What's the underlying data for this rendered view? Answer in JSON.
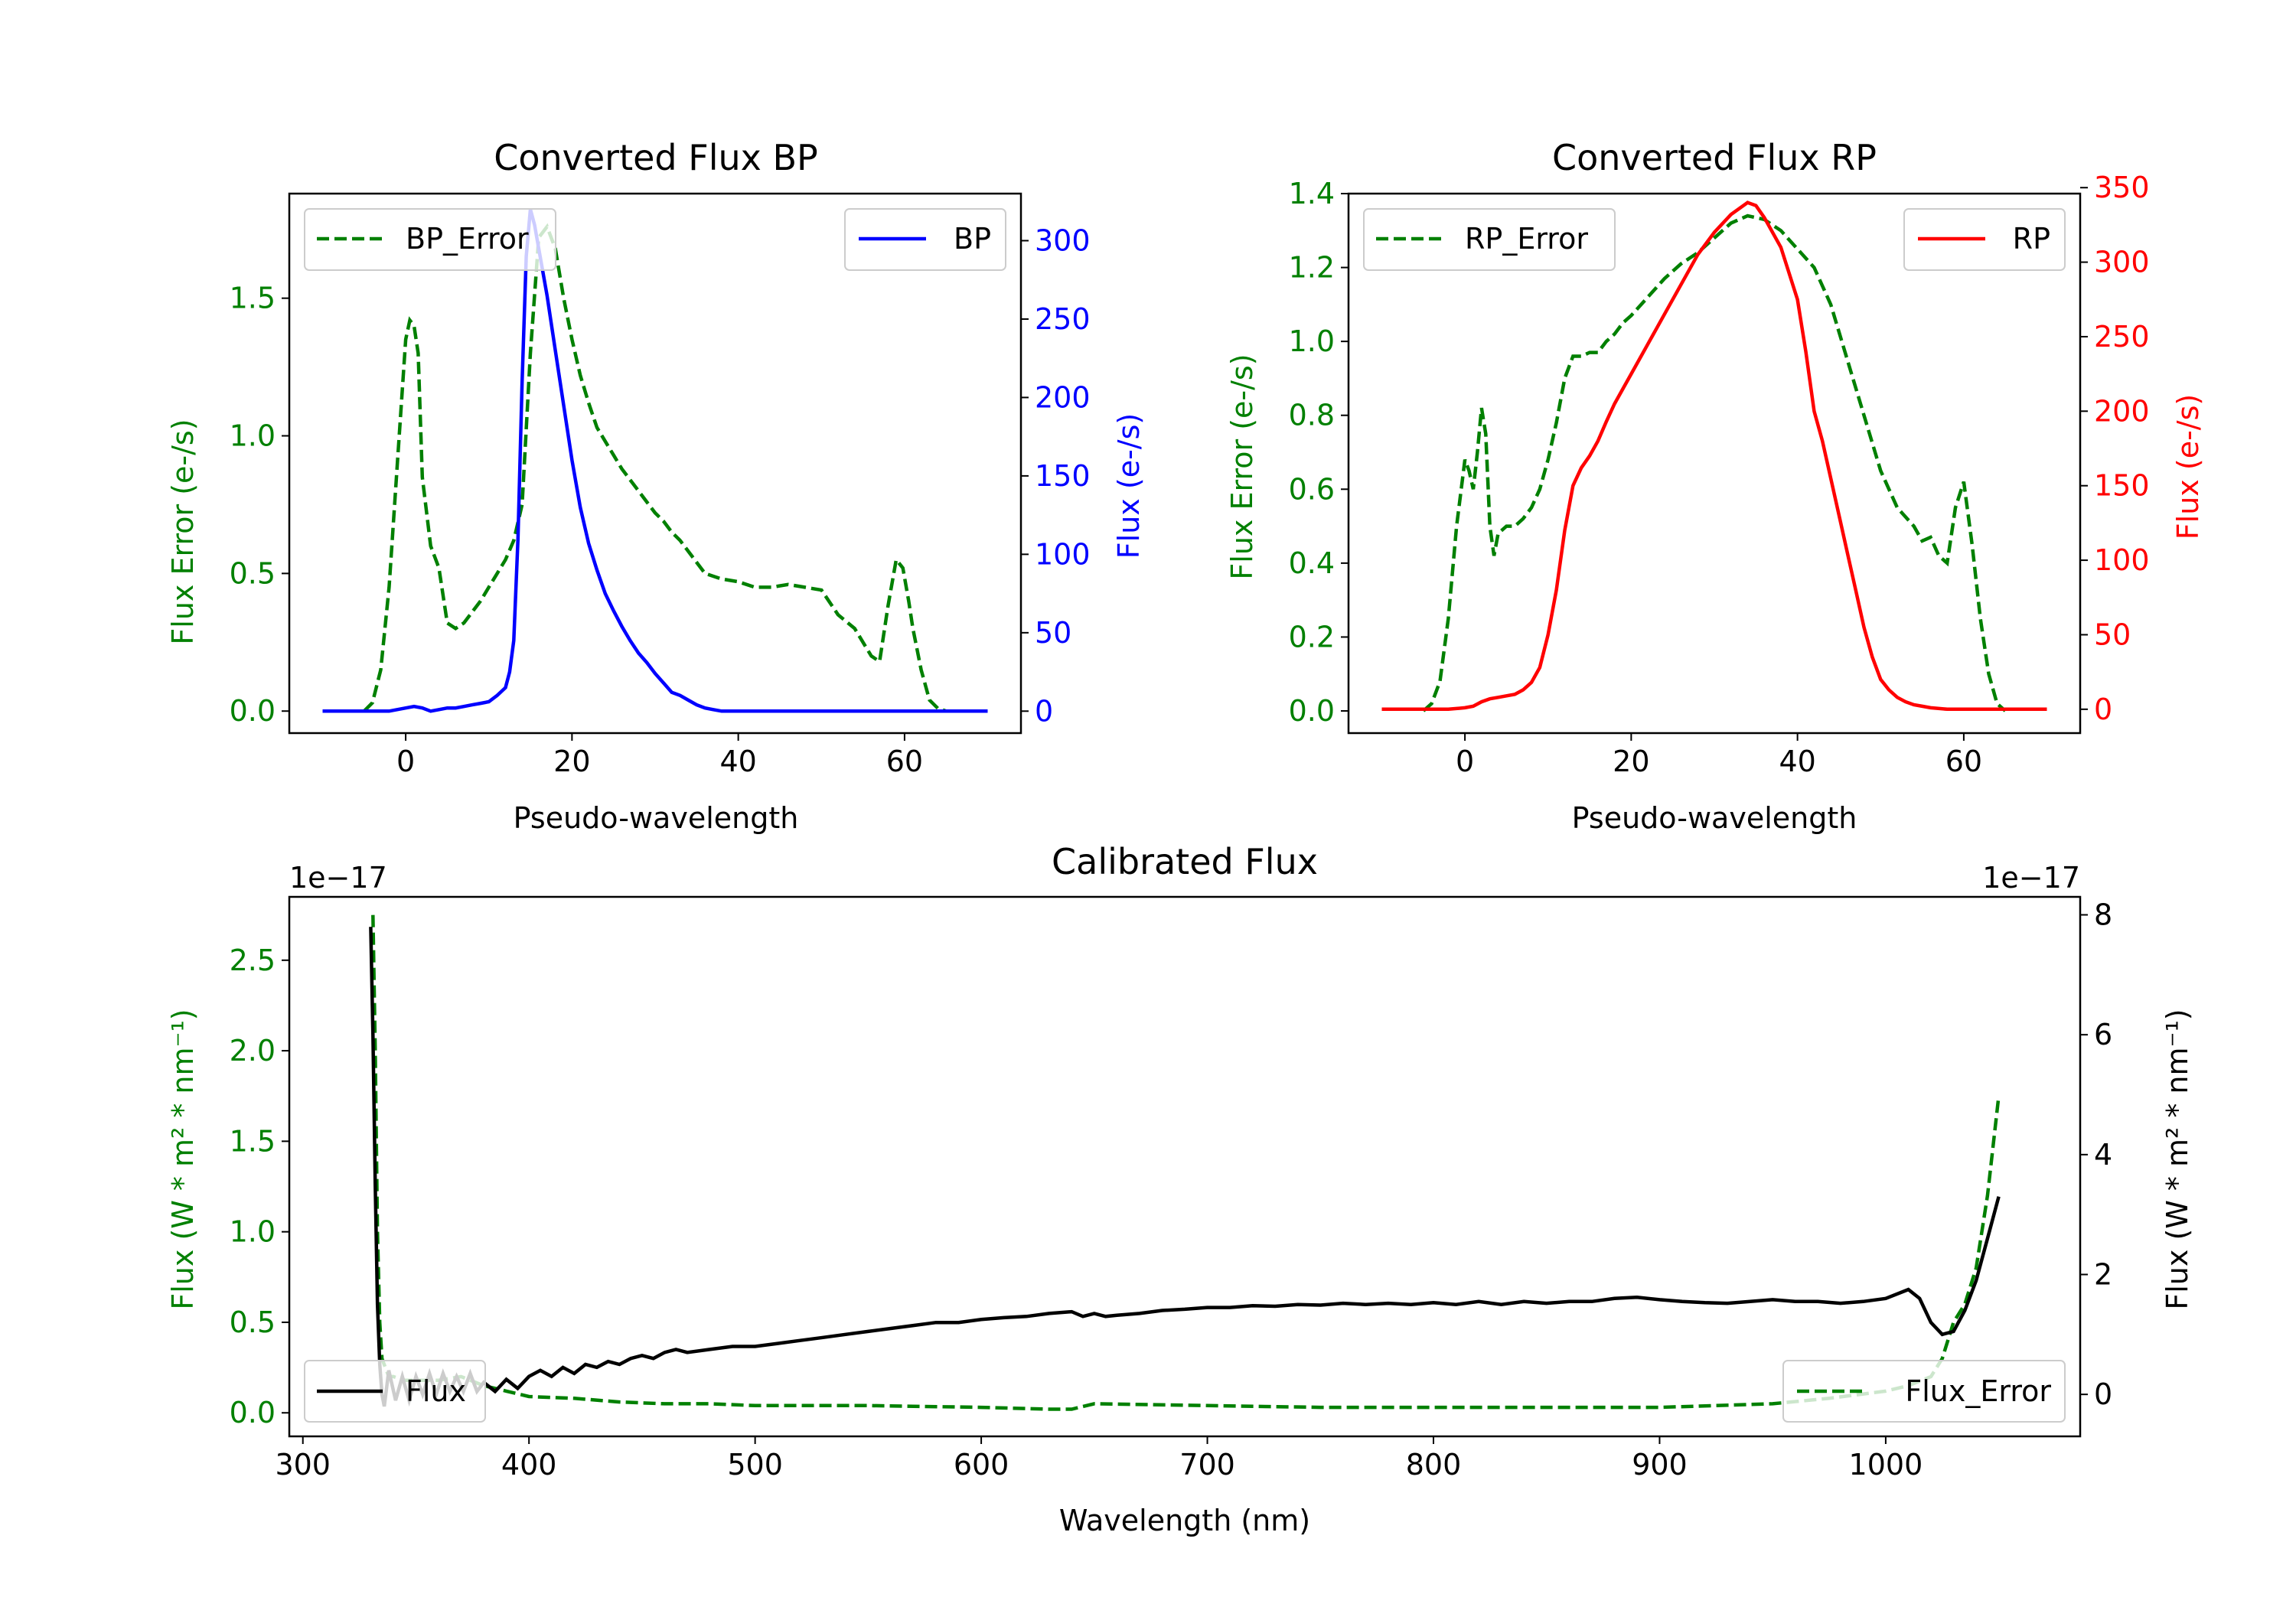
{
  "colors": {
    "green": "#008000",
    "blue": "#0000ff",
    "red": "#ff0000",
    "black": "#000000"
  },
  "chart_data": [
    {
      "type": "line",
      "title": "Converted Flux BP",
      "xlabel": "Pseudo-wavelength",
      "ylabel_left": "Flux Error (e-/s)",
      "ylabel_right": "Flux (e-/s)",
      "xlim": [
        -14,
        74
      ],
      "ylim_left": [
        -0.08,
        1.88
      ],
      "ylim_right": [
        -14,
        330
      ],
      "xticks": [
        0,
        20,
        40,
        60
      ],
      "yticks_left": [
        0.0,
        0.5,
        1.0,
        1.5
      ],
      "yticks_right": [
        0,
        50,
        100,
        150,
        200,
        250,
        300
      ],
      "series": [
        {
          "name": "BP_Error",
          "axis": "left",
          "color": "#008000",
          "dash": true,
          "x": [
            -5,
            -4,
            -3,
            -2,
            -1,
            0,
            0.5,
            1,
            1.5,
            2,
            3,
            4,
            5,
            6,
            7,
            8,
            9,
            10,
            11,
            12,
            13,
            14,
            15,
            16,
            17,
            18,
            19,
            20,
            21,
            22,
            23,
            24,
            25,
            26,
            27,
            28,
            29,
            30,
            31,
            32,
            33,
            34,
            35,
            36,
            37,
            38,
            40,
            42,
            44,
            46,
            48,
            50,
            52,
            54,
            56,
            57,
            58,
            59,
            59.8,
            60.5,
            61,
            62,
            63,
            64,
            65
          ],
          "y": [
            0,
            0.03,
            0.15,
            0.45,
            0.9,
            1.35,
            1.42,
            1.4,
            1.3,
            0.85,
            0.6,
            0.52,
            0.32,
            0.3,
            0.32,
            0.36,
            0.4,
            0.45,
            0.5,
            0.55,
            0.62,
            0.75,
            1.3,
            1.72,
            1.76,
            1.68,
            1.5,
            1.35,
            1.22,
            1.12,
            1.03,
            0.98,
            0.93,
            0.88,
            0.84,
            0.8,
            0.76,
            0.72,
            0.69,
            0.65,
            0.62,
            0.58,
            0.54,
            0.5,
            0.49,
            0.48,
            0.47,
            0.45,
            0.45,
            0.46,
            0.45,
            0.44,
            0.35,
            0.3,
            0.2,
            0.18,
            0.38,
            0.55,
            0.52,
            0.4,
            0.3,
            0.15,
            0.04,
            0.01,
            0
          ]
        },
        {
          "name": "BP",
          "axis": "right",
          "color": "#0000ff",
          "dash": false,
          "x": [
            -10,
            -8,
            -6,
            -4,
            -2,
            0,
            1,
            2,
            3,
            4,
            5,
            6,
            7,
            8,
            9,
            10,
            11,
            12,
            12.5,
            13,
            13.5,
            14,
            14.5,
            15,
            15.5,
            16,
            17,
            18,
            19,
            20,
            21,
            22,
            23,
            24,
            25,
            26,
            27,
            28,
            29,
            30,
            31,
            32,
            33,
            34,
            35,
            36,
            37,
            38,
            39,
            40,
            42,
            44,
            46,
            48,
            50,
            52,
            54,
            56,
            58,
            60,
            62,
            64,
            66,
            68,
            70
          ],
          "y": [
            0,
            0,
            0,
            0,
            0,
            2,
            3,
            2,
            0,
            1,
            2,
            2,
            3,
            4,
            5,
            6,
            10,
            15,
            25,
            45,
            110,
            210,
            290,
            320,
            310,
            295,
            265,
            230,
            195,
            160,
            130,
            107,
            90,
            75,
            64,
            54,
            45,
            37,
            31,
            24,
            18,
            12,
            10,
            7,
            4,
            2,
            1,
            0,
            0,
            0,
            0,
            0,
            0,
            0,
            0,
            0,
            0,
            0,
            0,
            0,
            0,
            0,
            0,
            0,
            0
          ]
        }
      ],
      "legends": [
        {
          "label": "BP_Error",
          "position": "upper-left"
        },
        {
          "label": "BP",
          "position": "upper-right"
        }
      ]
    },
    {
      "type": "line",
      "title": "Converted Flux RP",
      "xlabel": "Pseudo-wavelength",
      "ylabel_left": "Flux Error (e-/s)",
      "ylabel_right": "Flux (e-/s)",
      "xlim": [
        -14,
        74
      ],
      "ylim_left": [
        -0.06,
        1.4
      ],
      "ylim_right": [
        -16,
        346
      ],
      "xticks": [
        0,
        20,
        40,
        60
      ],
      "yticks_left": [
        0.0,
        0.2,
        0.4,
        0.6,
        0.8,
        1.0,
        1.2,
        1.4
      ],
      "yticks_right": [
        0,
        50,
        100,
        150,
        200,
        250,
        300,
        350
      ],
      "series": [
        {
          "name": "RP_Error",
          "axis": "left",
          "color": "#008000",
          "dash": true,
          "x": [
            -5,
            -4,
            -3,
            -2,
            -1,
            0,
            0.5,
            1,
            1.5,
            2,
            2.5,
            3,
            3.5,
            4,
            5,
            6,
            7,
            8,
            9,
            10,
            11,
            12,
            13,
            14,
            15,
            16,
            17,
            18,
            19,
            20,
            22,
            24,
            26,
            28,
            30,
            32,
            34,
            36,
            38,
            40,
            42,
            44,
            46,
            48,
            50,
            52,
            54,
            55,
            56,
            57,
            58,
            59,
            60,
            61,
            62,
            63,
            64,
            65
          ],
          "y": [
            0,
            0.02,
            0.08,
            0.25,
            0.5,
            0.68,
            0.65,
            0.6,
            0.7,
            0.82,
            0.75,
            0.5,
            0.42,
            0.48,
            0.5,
            0.5,
            0.52,
            0.55,
            0.6,
            0.68,
            0.78,
            0.9,
            0.96,
            0.96,
            0.97,
            0.97,
            1.0,
            1.02,
            1.05,
            1.07,
            1.12,
            1.17,
            1.21,
            1.24,
            1.28,
            1.32,
            1.34,
            1.33,
            1.3,
            1.25,
            1.2,
            1.1,
            0.95,
            0.8,
            0.65,
            0.55,
            0.5,
            0.46,
            0.47,
            0.42,
            0.4,
            0.55,
            0.62,
            0.45,
            0.25,
            0.1,
            0.02,
            0
          ]
        },
        {
          "name": "RP",
          "axis": "right",
          "color": "#ff0000",
          "dash": false,
          "x": [
            -10,
            -8,
            -6,
            -4,
            -2,
            0,
            1,
            2,
            3,
            4,
            5,
            6,
            7,
            8,
            9,
            10,
            11,
            12,
            13,
            14,
            15,
            16,
            17,
            18,
            19,
            20,
            22,
            24,
            26,
            28,
            30,
            32,
            34,
            35,
            36,
            38,
            40,
            41,
            42,
            43,
            44,
            45,
            46,
            47,
            48,
            49,
            50,
            51,
            52,
            53,
            54,
            55,
            56,
            58,
            60,
            62,
            64,
            66,
            68,
            70
          ],
          "y": [
            0,
            0,
            0,
            0,
            0,
            1,
            2,
            5,
            7,
            8,
            9,
            10,
            13,
            18,
            28,
            50,
            80,
            120,
            150,
            162,
            170,
            180,
            193,
            205,
            215,
            225,
            245,
            265,
            285,
            305,
            320,
            332,
            340,
            338,
            330,
            310,
            275,
            240,
            200,
            180,
            155,
            130,
            105,
            80,
            55,
            35,
            20,
            13,
            8,
            5,
            3,
            2,
            1,
            0,
            0,
            0,
            0,
            0,
            0,
            0
          ]
        }
      ],
      "legends": [
        {
          "label": "RP_Error",
          "position": "upper-left"
        },
        {
          "label": "RP",
          "position": "upper-right"
        }
      ]
    },
    {
      "type": "line",
      "title": "Calibrated Flux",
      "xlabel": "Wavelength (nm)",
      "ylabel_left": "Flux (W * m² * nm⁻¹)",
      "ylabel_right": "Flux (W * m² * nm⁻¹)",
      "offset_left": "1e−17",
      "offset_right": "1e−17",
      "xlim": [
        294,
        1086
      ],
      "ylim_left": [
        -0.13,
        2.85
      ],
      "ylim_right": [
        -0.7,
        8.3
      ],
      "xticks": [
        300,
        400,
        500,
        600,
        700,
        800,
        900,
        1000
      ],
      "yticks_left": [
        0.0,
        0.5,
        1.0,
        1.5,
        2.0,
        2.5
      ],
      "yticks_right": [
        0,
        2,
        4,
        6,
        8
      ],
      "series": [
        {
          "name": "Flux",
          "axis": "right",
          "color": "#000000",
          "dash": false,
          "x": [
            330,
            331,
            332,
            333,
            334,
            335,
            336,
            338,
            341,
            344,
            347,
            350,
            353,
            356,
            359,
            362,
            365,
            368,
            371,
            374,
            377,
            380,
            385,
            390,
            395,
            400,
            405,
            410,
            415,
            420,
            425,
            430,
            435,
            440,
            445,
            450,
            455,
            460,
            465,
            470,
            480,
            490,
            500,
            510,
            520,
            530,
            540,
            550,
            560,
            570,
            580,
            590,
            600,
            610,
            620,
            630,
            640,
            645,
            650,
            655,
            660,
            670,
            680,
            690,
            700,
            710,
            720,
            730,
            740,
            750,
            760,
            770,
            780,
            790,
            800,
            810,
            820,
            830,
            840,
            850,
            860,
            870,
            880,
            890,
            900,
            910,
            920,
            930,
            940,
            950,
            960,
            970,
            980,
            990,
            1000,
            1010,
            1015,
            1020,
            1025,
            1030,
            1035,
            1040,
            1045,
            1050
          ],
          "y": [
            7.8,
            6.0,
            3.5,
            1.5,
            0.5,
            0.0,
            -0.2,
            0.4,
            -0.1,
            0.3,
            -0.1,
            0.3,
            0.0,
            0.35,
            0.0,
            0.35,
            0.05,
            0.3,
            0.05,
            0.35,
            0.05,
            0.2,
            0.05,
            0.25,
            0.1,
            0.3,
            0.4,
            0.3,
            0.45,
            0.35,
            0.5,
            0.45,
            0.55,
            0.5,
            0.6,
            0.65,
            0.6,
            0.7,
            0.75,
            0.7,
            0.75,
            0.8,
            0.8,
            0.85,
            0.9,
            0.95,
            1.0,
            1.05,
            1.1,
            1.15,
            1.2,
            1.2,
            1.25,
            1.28,
            1.3,
            1.35,
            1.38,
            1.3,
            1.35,
            1.3,
            1.32,
            1.35,
            1.4,
            1.42,
            1.45,
            1.45,
            1.48,
            1.47,
            1.5,
            1.49,
            1.52,
            1.5,
            1.52,
            1.5,
            1.53,
            1.5,
            1.55,
            1.5,
            1.55,
            1.52,
            1.55,
            1.55,
            1.6,
            1.62,
            1.58,
            1.55,
            1.53,
            1.52,
            1.55,
            1.58,
            1.55,
            1.55,
            1.52,
            1.55,
            1.6,
            1.75,
            1.6,
            1.2,
            1.0,
            1.05,
            1.4,
            1.9,
            2.6,
            3.3
          ]
        },
        {
          "name": "Flux_Error",
          "axis": "left",
          "color": "#008000",
          "dash": true,
          "x": [
            331,
            332,
            333,
            334,
            335,
            338,
            340,
            345,
            350,
            360,
            370,
            380,
            390,
            400,
            420,
            440,
            460,
            480,
            500,
            550,
            600,
            630,
            640,
            650,
            700,
            750,
            800,
            850,
            900,
            950,
            975,
            1000,
            1010,
            1020,
            1025,
            1030,
            1035,
            1040,
            1045,
            1050
          ],
          "y": [
            2.75,
            2.0,
            1.0,
            0.5,
            0.3,
            0.2,
            0.2,
            0.18,
            0.18,
            0.18,
            0.2,
            0.15,
            0.12,
            0.09,
            0.08,
            0.06,
            0.05,
            0.05,
            0.04,
            0.04,
            0.03,
            0.02,
            0.02,
            0.05,
            0.04,
            0.03,
            0.03,
            0.03,
            0.03,
            0.05,
            0.08,
            0.12,
            0.15,
            0.2,
            0.3,
            0.5,
            0.6,
            0.8,
            1.2,
            1.75
          ]
        }
      ],
      "legends": [
        {
          "label": "Flux",
          "position": "lower-left"
        },
        {
          "label": "Flux_Error",
          "position": "lower-right"
        }
      ]
    }
  ]
}
